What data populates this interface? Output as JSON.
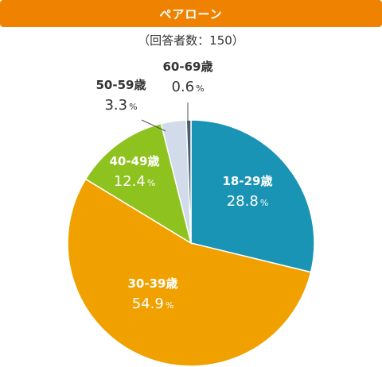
{
  "title": "ペアローン",
  "subtitle": "（回答者数：150）",
  "colors": {
    "title_bg": "#ef8200",
    "label_dark": "#333333",
    "label_light": "#ffffff",
    "leader": "#555555"
  },
  "chart_data": {
    "type": "pie",
    "unit": "%",
    "categories": [
      "18-29歳",
      "30-39歳",
      "40-49歳",
      "50-59歳",
      "60-69歳"
    ],
    "values": [
      28.8,
      54.9,
      12.4,
      3.3,
      0.6
    ],
    "colors": [
      "#1a94b4",
      "#f0a100",
      "#8dc21f",
      "#d1dbe9",
      "#4b5d73"
    ],
    "start_angle_deg": 0,
    "direction": "clockwise"
  }
}
